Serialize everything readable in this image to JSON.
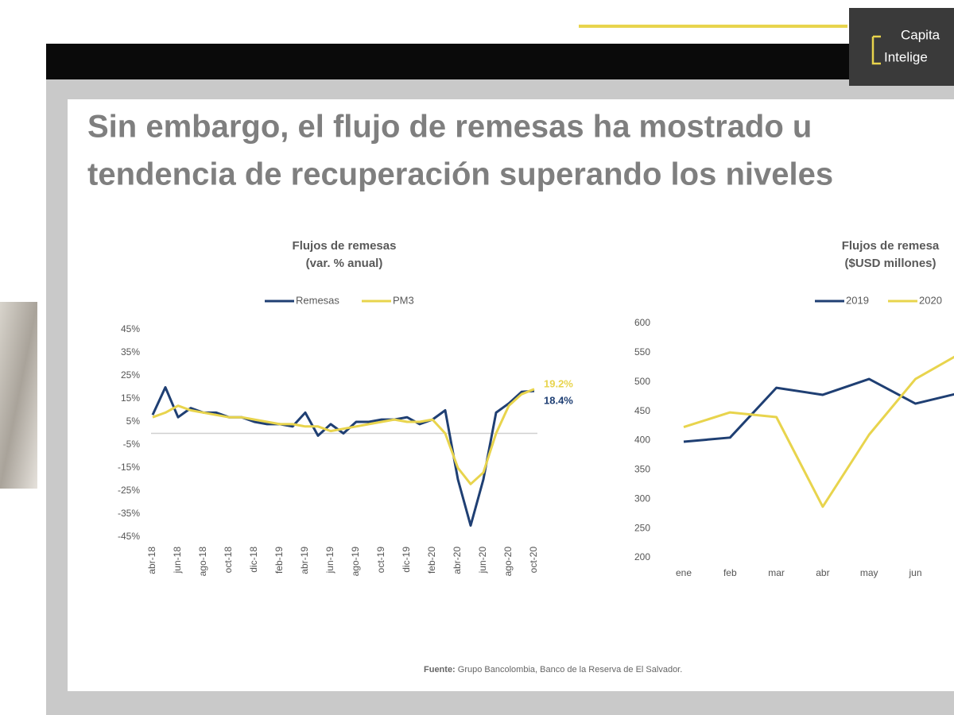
{
  "slide": {
    "title_lines": [
      "Sin embargo, el flujo de remesas ha mostrado u",
      "tendencia de recuperación superando los niveles"
    ],
    "logo_lines": [
      "Capita",
      "Intelige"
    ],
    "source_label": "Fuente:",
    "source_text": "Grupo Bancolombia, Banco de la Reserva de El Salvador."
  },
  "chart_data": [
    {
      "type": "line",
      "title_lines": [
        "Flujos de remesas",
        "(var. % anual)"
      ],
      "categories": [
        "abr-18",
        null,
        "jun-18",
        null,
        "ago-18",
        null,
        "oct-18",
        null,
        "dic-18",
        null,
        "feb-19",
        null,
        "abr-19",
        null,
        "jun-19",
        null,
        "ago-19",
        null,
        "oct-19",
        null,
        "dic-19",
        null,
        "feb-20",
        null,
        "abr-20",
        null,
        "jun-20",
        null,
        "ago-20",
        null,
        "oct-20"
      ],
      "series": [
        {
          "name": "Remesas",
          "color": "#1f3f73",
          "values": [
            8,
            20,
            7,
            11,
            9,
            9,
            7,
            7,
            5,
            4,
            4,
            3,
            9,
            -1,
            4,
            0,
            5,
            5,
            6,
            6,
            7,
            4,
            6,
            10,
            -20,
            -40,
            -20,
            9,
            13,
            18,
            18.4
          ],
          "value_labels": [
            null,
            null,
            null,
            null,
            null,
            null,
            null,
            null,
            null,
            null,
            null,
            null,
            null,
            null,
            null,
            null,
            null,
            null,
            null,
            null,
            null,
            null,
            null,
            null,
            null,
            null,
            null,
            null,
            null,
            null,
            "18.4%"
          ]
        },
        {
          "name": "PM3",
          "color": "#e8d44d",
          "values": [
            7,
            9,
            12,
            10,
            9,
            8,
            7,
            7,
            6,
            5,
            4,
            4,
            3,
            3,
            1,
            2,
            3,
            4,
            5,
            6,
            5,
            5,
            6,
            0,
            -15,
            -22,
            -17,
            0,
            12,
            17,
            19.2
          ],
          "value_labels": [
            null,
            null,
            null,
            null,
            null,
            null,
            null,
            null,
            null,
            null,
            null,
            null,
            null,
            null,
            null,
            null,
            null,
            null,
            null,
            null,
            null,
            null,
            null,
            null,
            null,
            null,
            null,
            null,
            null,
            null,
            "19.2%"
          ]
        }
      ],
      "ylim": [
        -45,
        45
      ],
      "yticks": [
        {
          "value": -45,
          "label": "-45%"
        },
        {
          "value": -35,
          "label": "-35%"
        },
        {
          "value": -25,
          "label": "-25%"
        },
        {
          "value": -15,
          "label": "-15%"
        },
        {
          "value": -5,
          "label": "-5%"
        },
        {
          "value": 5,
          "label": "5%"
        },
        {
          "value": 15,
          "label": "15%"
        },
        {
          "value": 25,
          "label": "25%"
        },
        {
          "value": 35,
          "label": "35%"
        },
        {
          "value": 45,
          "label": "45%"
        }
      ],
      "grid": false,
      "legend": "top"
    },
    {
      "type": "line",
      "title_lines": [
        "Flujos de remesa",
        "($USD millones)"
      ],
      "categories": [
        "ene",
        "feb",
        "mar",
        "abr",
        "may",
        "jun",
        null
      ],
      "series": [
        {
          "name": "2019",
          "color": "#1f3f73",
          "values": [
            398,
            405,
            490,
            478,
            505,
            463,
            482
          ]
        },
        {
          "name": "2020",
          "color": "#e8d44d",
          "values": [
            423,
            448,
            440,
            287,
            410,
            505,
            550
          ]
        }
      ],
      "ylim": [
        200,
        600
      ],
      "yticks": [
        200,
        250,
        300,
        350,
        400,
        450,
        500,
        550,
        600
      ],
      "grid": false,
      "legend": "top"
    }
  ]
}
